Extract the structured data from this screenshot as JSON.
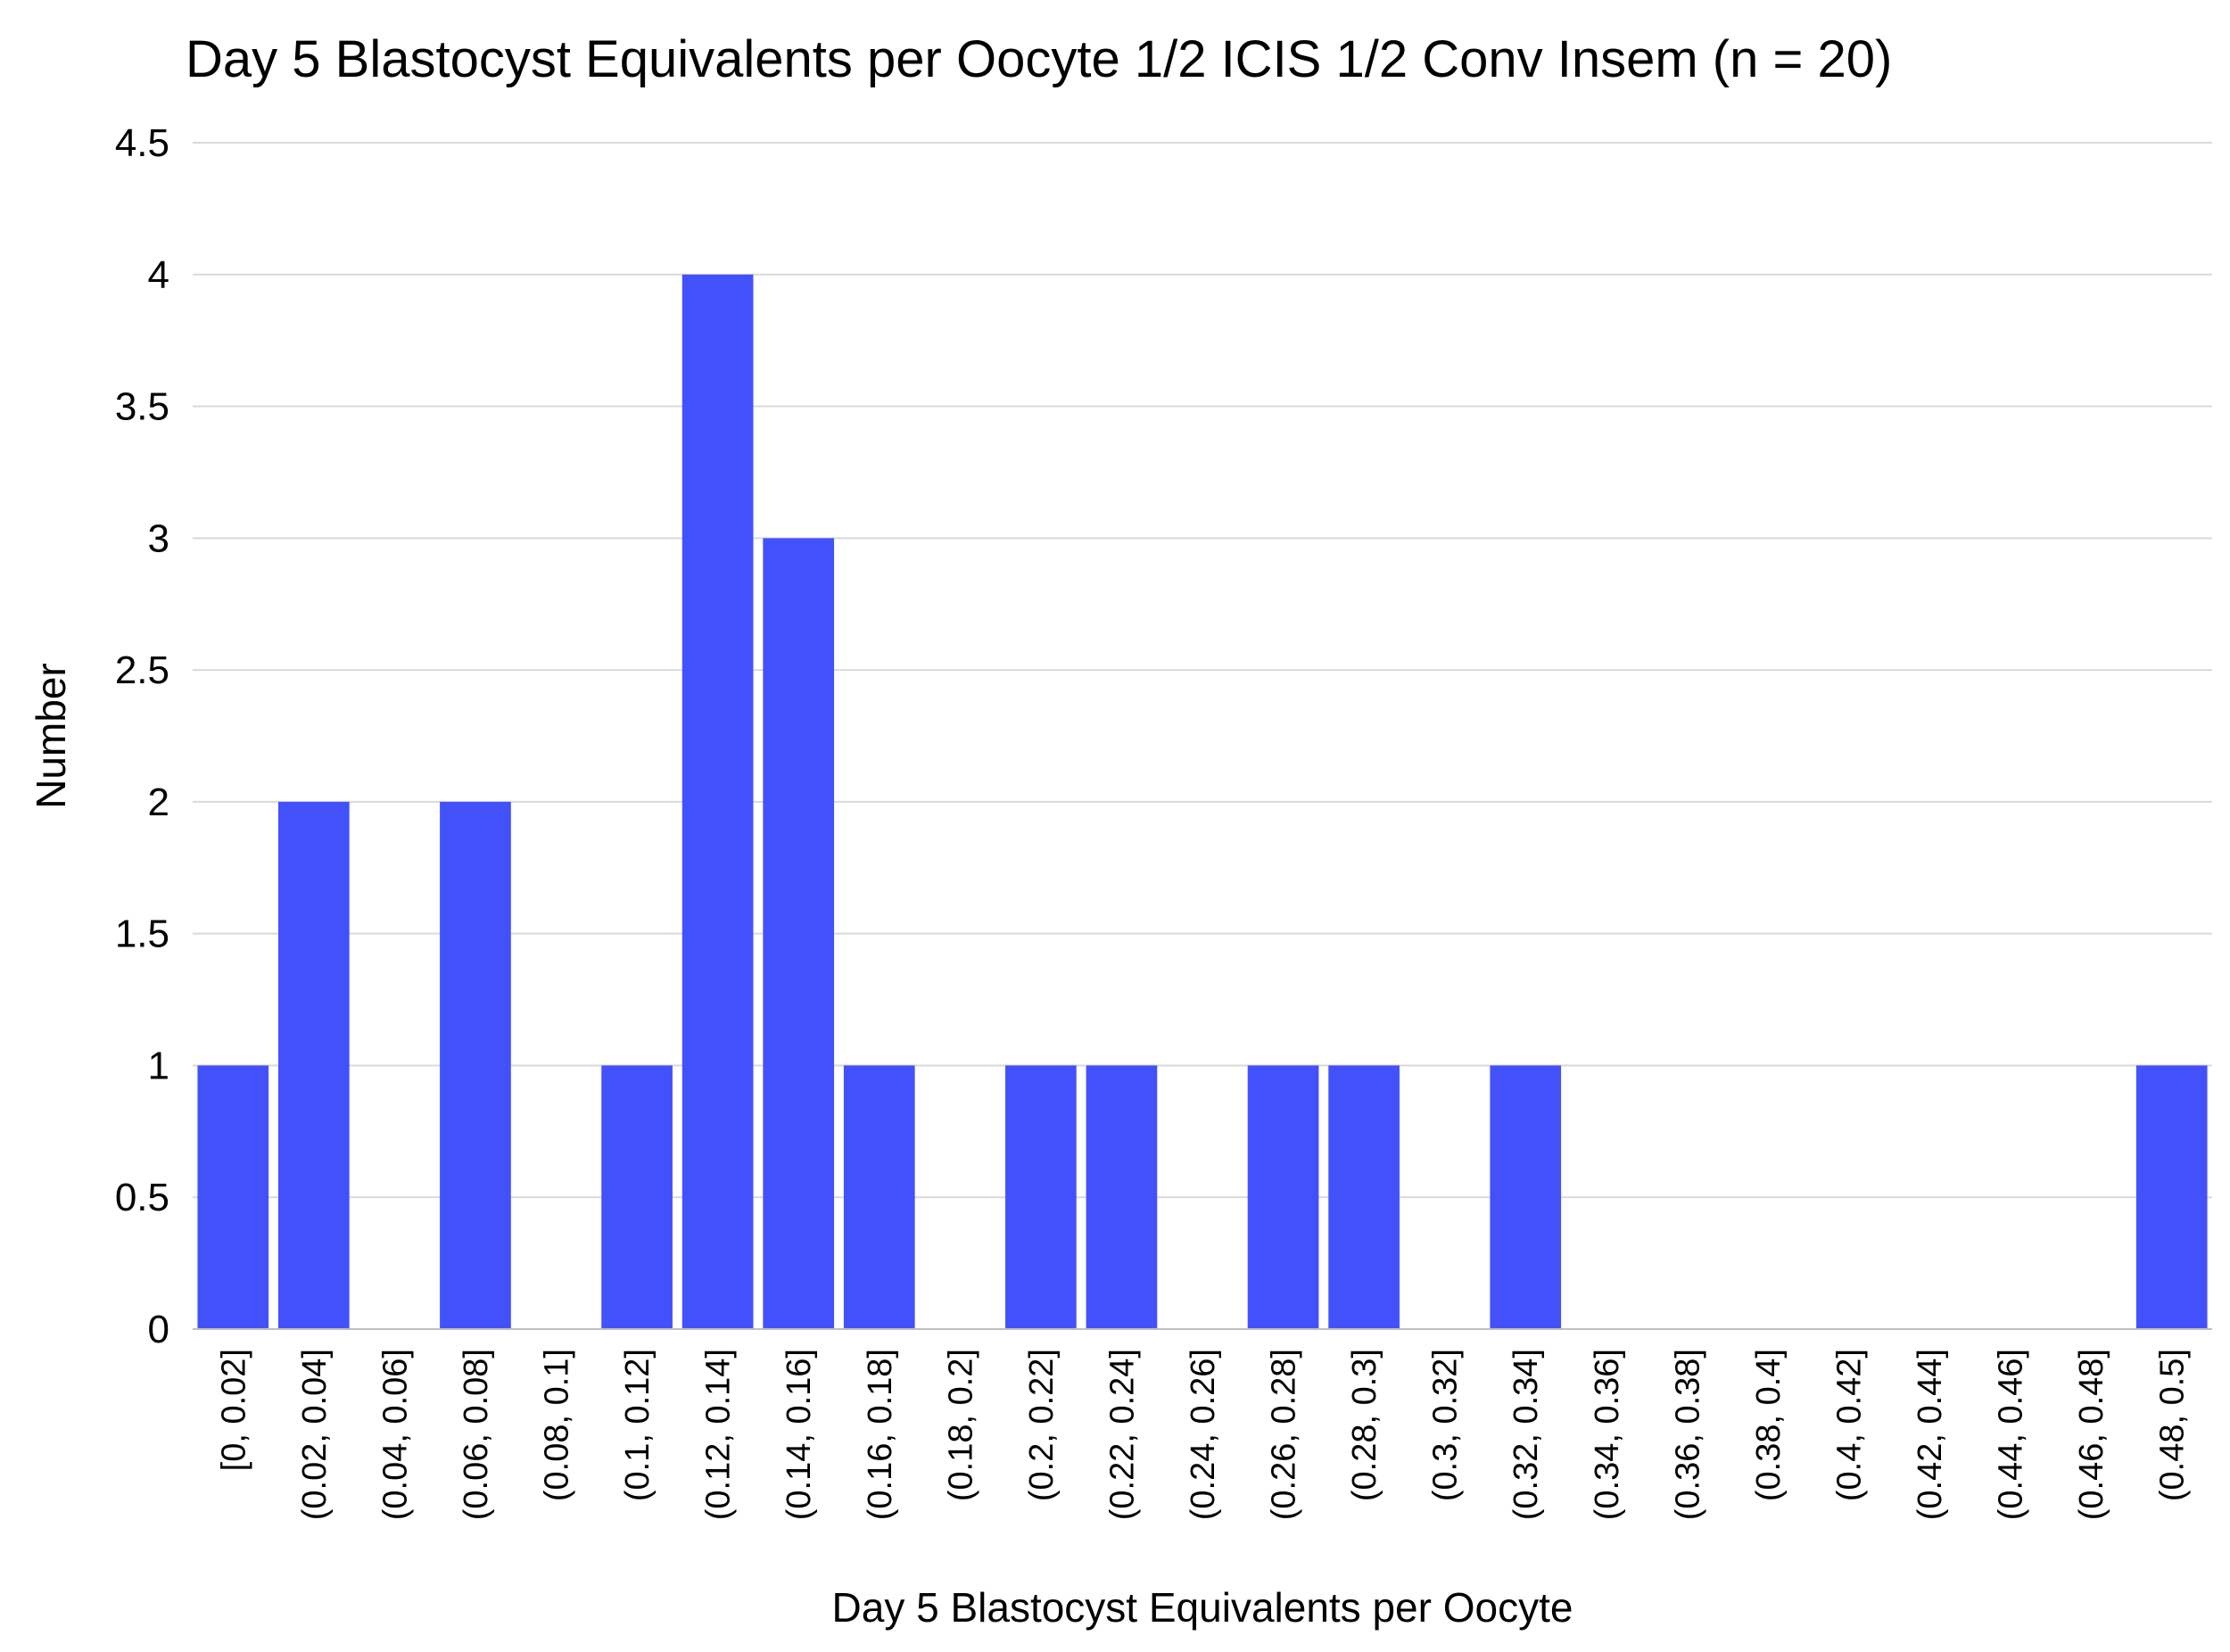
{
  "chart_data": {
    "type": "bar",
    "title": "Day 5 Blastocyst Equivalents per Oocyte 1/2 ICIS 1/2 Conv Insem (n = 20)",
    "xlabel": "Day 5 Blastocyst Equivalents per Oocyte",
    "ylabel": "Number",
    "ylim": [
      0,
      4.5
    ],
    "yticks": [
      "0",
      "0.5",
      "1",
      "1.5",
      "2",
      "2.5",
      "3",
      "3.5",
      "4",
      "4.5"
    ],
    "grid": true,
    "legend": "none",
    "bar_color": "#4351fb",
    "categories": [
      "[0, 0.02]",
      "(0.02, 0.04]",
      "(0.04, 0.06]",
      "(0.06, 0.08]",
      "(0.08, 0.1]",
      "(0.1, 0.12]",
      "(0.12, 0.14]",
      "(0.14, 0.16]",
      "(0.16, 0.18]",
      "(0.18, 0.2]",
      "(0.2, 0.22]",
      "(0.22, 0.24]",
      "(0.24, 0.26]",
      "(0.26, 0.28]",
      "(0.28, 0.3]",
      "(0.3, 0.32]",
      "(0.32, 0.34]",
      "(0.34, 0.36]",
      "(0.36, 0.38]",
      "(0.38, 0.4]",
      "(0.4, 0.42]",
      "(0.42, 0.44]",
      "(0.44, 0.46]",
      "(0.46, 0.48]",
      "(0.48, 0.5]"
    ],
    "values": [
      1,
      2,
      0,
      2,
      0,
      1,
      4,
      3,
      1,
      0,
      1,
      1,
      0,
      1,
      1,
      0,
      1,
      0,
      0,
      0,
      0,
      0,
      0,
      0,
      1
    ]
  }
}
